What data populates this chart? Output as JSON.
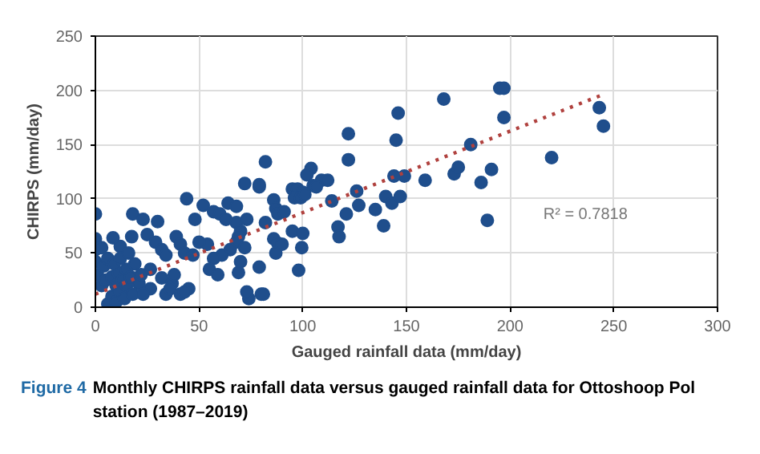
{
  "chart_data": {
    "type": "scatter",
    "xlabel": "Gauged rainfall data (mm/day)",
    "ylabel": "CHIRPS (mm/day)",
    "xlim": [
      0,
      300
    ],
    "xticks": [
      0,
      50,
      100,
      150,
      200,
      250,
      300
    ],
    "ylim": [
      0,
      250
    ],
    "yticks": [
      0,
      50,
      100,
      150,
      200,
      250
    ],
    "grid": true,
    "marker": "circle",
    "annotations": [
      "R² = 0.7818",
      "Figure 4",
      "Monthly CHIRPS rainfall data versus gauged rainfall data for Ottoshoop Pol station (1987–2019)"
    ],
    "series": [
      {
        "color": "#1f4e8c",
        "x": [
          195,
          197,
          197,
          243,
          245,
          220,
          191,
          186,
          189,
          181,
          168,
          146,
          145,
          122,
          122,
          144,
          149,
          159,
          173,
          175,
          126,
          127,
          121,
          135,
          139,
          140,
          143,
          147,
          117,
          117.5,
          114,
          104,
          102,
          109,
          112,
          105,
          106.5,
          95,
          97.5,
          100,
          96,
          99,
          101,
          86,
          87,
          88,
          91,
          82,
          79,
          82,
          86,
          88,
          87,
          90,
          95,
          100,
          99.5,
          98,
          79,
          80,
          72,
          79,
          44,
          52,
          57,
          60,
          64,
          68,
          48,
          63,
          68,
          73,
          70,
          69,
          68,
          72,
          65,
          61,
          70,
          57,
          55,
          59,
          69,
          54,
          50,
          74,
          81,
          18,
          23,
          30,
          8.5,
          12,
          17.5,
          25,
          29,
          32,
          34,
          39,
          41,
          43,
          47,
          26.5,
          32,
          37,
          45,
          26.5,
          21,
          23,
          34,
          41,
          0,
          0,
          0,
          0,
          73,
          36,
          43,
          38,
          1,
          3,
          5,
          6,
          8,
          8,
          10,
          10,
          11,
          12,
          13,
          14,
          15,
          15,
          17,
          18,
          19,
          22,
          4,
          6,
          9,
          12,
          16,
          3
        ],
        "values": [
          202,
          202,
          175,
          184,
          167,
          138,
          127,
          115,
          80,
          150,
          192,
          179,
          154,
          160,
          136,
          121,
          121,
          117,
          123,
          129,
          107,
          94,
          86,
          90,
          75,
          102,
          96,
          102,
          74,
          65,
          98,
          128,
          122,
          117,
          117,
          112,
          111,
          109,
          109,
          106,
          101,
          101,
          104,
          99,
          91,
          86,
          88,
          78,
          111,
          134,
          63,
          59,
          50,
          58,
          70,
          68,
          55,
          34,
          37,
          12,
          114,
          113,
          100,
          94,
          88,
          86,
          96,
          93,
          81,
          81,
          78,
          81,
          70,
          65,
          60,
          55,
          53,
          48,
          42,
          45,
          35,
          30,
          32,
          58,
          60,
          8,
          12,
          86,
          81,
          79,
          64,
          56,
          65,
          67,
          60,
          53,
          48,
          65,
          58,
          50,
          48,
          35,
          27,
          22,
          17,
          17,
          22,
          12,
          12,
          12,
          86,
          63,
          53,
          42,
          14,
          17,
          14,
          30,
          30,
          20,
          25,
          3,
          10,
          28,
          5,
          20,
          32,
          14,
          25,
          8,
          20,
          35,
          28,
          12,
          40,
          30,
          38,
          45,
          40,
          45,
          50,
          55
        ]
      },
      {
        "type": "line",
        "color": "#b0413e",
        "line_style": "dotted",
        "marker": "none",
        "x": [
          0,
          246
        ],
        "values": [
          12,
          197
        ]
      }
    ]
  }
}
